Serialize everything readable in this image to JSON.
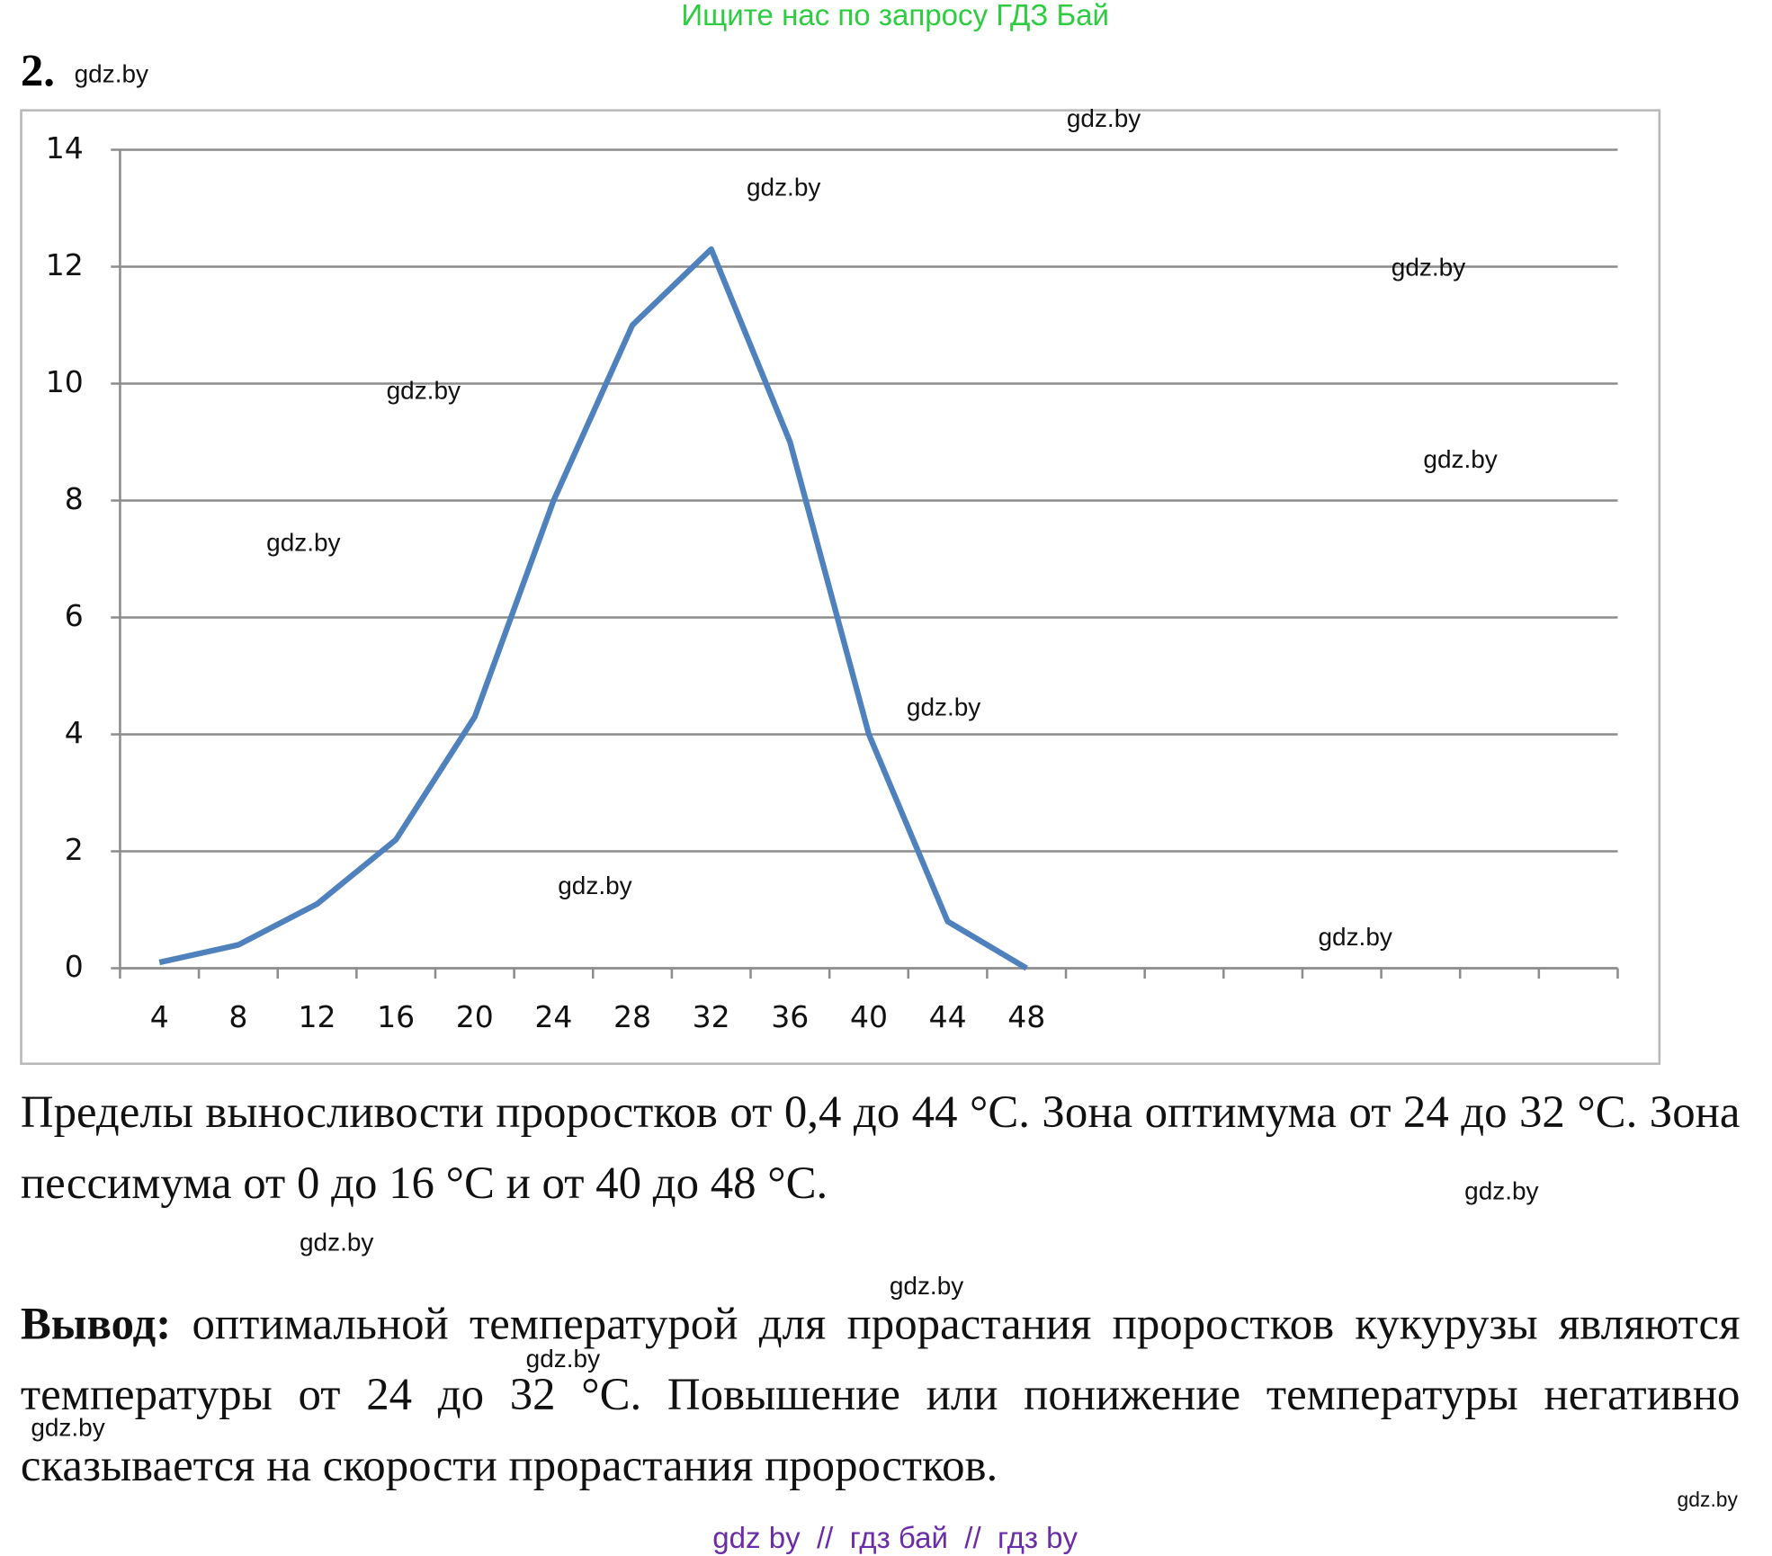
{
  "header": {
    "banner": "Ищите нас по запросу ГДЗ Бай",
    "number": "2."
  },
  "chart_data": {
    "type": "line",
    "categories": [
      "4",
      "8",
      "12",
      "16",
      "20",
      "24",
      "28",
      "32",
      "36",
      "40",
      "44",
      "48",
      null,
      null,
      null,
      null,
      null,
      null,
      null
    ],
    "values": [
      0.1,
      0.4,
      1.1,
      2.2,
      4.3,
      8,
      11,
      12.3,
      9,
      4,
      0.8,
      0,
      null,
      null,
      null,
      null,
      null,
      null,
      null
    ],
    "color": "#4f81bd",
    "ylim": [
      0,
      14
    ],
    "yticks": [
      0,
      2,
      4,
      6,
      8,
      10,
      12,
      14
    ],
    "grid": true
  },
  "paragraphs": [
    {
      "text": "Пределы выносливости проростков от 0,4 до 44 °С. Зона оптимума от 24 до 32 °С. Зона пессимума от 0 до 16 °С и от 40 до 48 °С."
    },
    {
      "lead": "Вывод:",
      "text": "оптимальной температурой для прорастания проростков кукурузы являются температуры от 24 до 32 °С. Повышение или понижение температуры негативно сказывается на скорости прорастания проростков."
    }
  ],
  "watermarks": [
    "gdz.by",
    "gdz.by",
    "gdz.by",
    "gdz.by",
    "gdz.by",
    "gdz.by",
    "gdz.by",
    "gdz.by",
    "gdz.by",
    "gdz.by",
    "gdz.by",
    "gdz.by",
    "gdz.by",
    "gdz.by",
    "gdz.by",
    "gdz.by"
  ],
  "footer": "gdz by  //  гдз бай  //  гдз by"
}
